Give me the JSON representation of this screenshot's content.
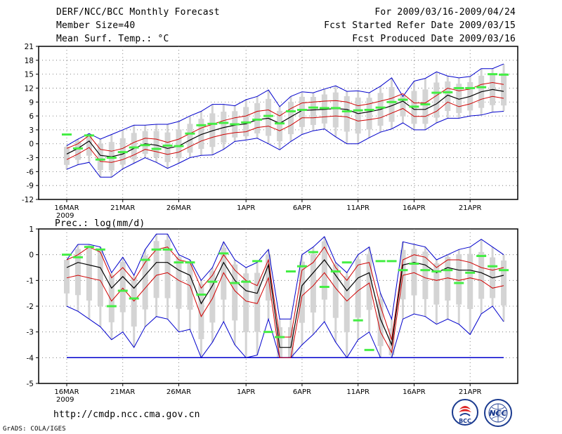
{
  "header": {
    "title": "DERF/NCC/BCC Monthly Forecast",
    "member_size": "Member Size=40",
    "variable": "Mean Surf. Temp.: °C",
    "fcst_for": "For 2009/03/16-2009/04/24",
    "fcst_started": "Fcst Started Refer Date 2009/03/15",
    "fcst_produced": "Fcst Produced Date 2009/03/16"
  },
  "footer": {
    "url": "http://cmdp.ncc.cma.gov.cn",
    "grads": "GrADS: COLA/IGES",
    "logo_bcc": "BCC",
    "logo_ncc": "NCC"
  },
  "colors": {
    "mean": "#000000",
    "spread": "#d00000",
    "envelope": "#0000cc",
    "box": "#d4d4d4",
    "obs": "#44ee44"
  },
  "chart_data": [
    {
      "type": "line",
      "title": "Mean Surf. Temp.: °C",
      "x_tick_labels": [
        "16MAR",
        "21MAR",
        "26MAR",
        "1APR",
        "6APR",
        "11APR",
        "16APR",
        "21APR"
      ],
      "x_tick_days": [
        1,
        6,
        11,
        17,
        22,
        27,
        32,
        37
      ],
      "year_label": "2009",
      "ylim": [
        -12,
        21
      ],
      "yticks": [
        -12,
        -9,
        -6,
        -3,
        0,
        3,
        6,
        9,
        12,
        15,
        18,
        21
      ],
      "days": 40,
      "series": [
        {
          "name": "ensemble mean",
          "values": [
            -2.2,
            -1,
            0.6,
            -2.5,
            -2.8,
            -2.2,
            -1,
            0,
            -0.3,
            -1,
            -0.5,
            0.8,
            2,
            2.8,
            3.5,
            4,
            4.3,
            5.2,
            5.5,
            4.4,
            5.8,
            7.2,
            7.3,
            7.4,
            7.6,
            7.4,
            6.5,
            6.9,
            7.4,
            8.2,
            9.2,
            7.4,
            7.4,
            8.6,
            10.5,
            9.6,
            10.2,
            11.2,
            11.7,
            11.3
          ]
        },
        {
          "name": "upper spread",
          "values": [
            -1,
            0,
            1.8,
            -1.2,
            -1.6,
            -1,
            0.3,
            1.2,
            1,
            0.3,
            1,
            2.2,
            3.4,
            4.2,
            5,
            5.6,
            6,
            7,
            7.3,
            6,
            7.6,
            8.8,
            9,
            9.2,
            9.3,
            9,
            8.2,
            8.6,
            9.2,
            9.8,
            10.8,
            8.8,
            8.8,
            10.4,
            12,
            11.4,
            11.8,
            12.8,
            13.2,
            12.8
          ]
        },
        {
          "name": "lower spread",
          "values": [
            -3.4,
            -2.2,
            -0.8,
            -3.8,
            -4,
            -3.4,
            -2.4,
            -1.2,
            -1.7,
            -2.3,
            -1.8,
            -0.6,
            0.6,
            1.4,
            2,
            2.4,
            2.6,
            3.5,
            3.8,
            2.8,
            4,
            5.6,
            5.6,
            5.8,
            6,
            5.8,
            4.9,
            5.2,
            5.6,
            6.6,
            7.6,
            5.9,
            5.9,
            7,
            9,
            8,
            8.6,
            9.6,
            10.2,
            9.8
          ]
        },
        {
          "name": "ensemble max",
          "values": [
            -0.4,
            1,
            2.2,
            1,
            2,
            3,
            4,
            4,
            4.2,
            4.2,
            4.8,
            6,
            7,
            8.5,
            8.5,
            8.2,
            9.5,
            10.2,
            11.6,
            8,
            10.2,
            11.2,
            11,
            11.8,
            12.5,
            11.3,
            11.4,
            11,
            12.4,
            14.2,
            10.2,
            13.5,
            14.1,
            15.5,
            14.6,
            14.2,
            14.5,
            16.2,
            16.2,
            17.2
          ]
        },
        {
          "name": "ensemble min",
          "values": [
            -5.5,
            -4.5,
            -4,
            -7.2,
            -7.2,
            -5.4,
            -4.2,
            -3,
            -4,
            -5.3,
            -4.2,
            -3,
            -2.5,
            -2.4,
            -1.2,
            0.5,
            0.8,
            1.2,
            0,
            -1.3,
            0.5,
            2,
            2.8,
            3.2,
            1.5,
            0,
            0,
            1.3,
            2.5,
            3.2,
            4.5,
            3,
            3,
            4.5,
            5.5,
            5.5,
            6,
            6.2,
            6.8,
            7
          ]
        },
        {
          "name": "observed (analog)",
          "values": [
            2,
            -1,
            1.8,
            -3.4,
            -3,
            -1.8,
            -0.8,
            -0.3,
            -1.1,
            -0.4,
            -0.5,
            2.2,
            4,
            4.3,
            4.5,
            4.2,
            4.6,
            5.2,
            6,
            4.4,
            7,
            7.3,
            7.8,
            7.7,
            7.7,
            7,
            7.2,
            7.3,
            7.8,
            9,
            9.5,
            8,
            8.5,
            11,
            11.1,
            12,
            12,
            12.2,
            15,
            14.9
          ]
        }
      ]
    },
    {
      "type": "line",
      "title": "Prec.: log(mm/d)",
      "x_tick_labels": [
        "16MAR",
        "21MAR",
        "26MAR",
        "1APR",
        "6APR",
        "11APR",
        "16APR",
        "21APR"
      ],
      "x_tick_days": [
        1,
        6,
        11,
        17,
        22,
        27,
        32,
        37
      ],
      "year_label": "2009",
      "ylim": [
        -5,
        1
      ],
      "yticks": [
        -5,
        -4,
        -3,
        -2,
        -1,
        0,
        1
      ],
      "days": 40,
      "series": [
        {
          "name": "ensemble mean",
          "values": [
            -0.5,
            -0.3,
            -0.4,
            -0.5,
            -1.3,
            -0.85,
            -1.3,
            -0.8,
            -0.3,
            -0.3,
            -0.6,
            -0.8,
            -1.9,
            -1.2,
            -0.3,
            -1,
            -1.4,
            -1.5,
            -0.4,
            -3.6,
            -3.6,
            -1.2,
            -0.7,
            -0.2,
            -0.8,
            -1.4,
            -0.9,
            -0.7,
            -2.5,
            -3.5,
            -0.4,
            -0.3,
            -0.4,
            -0.7,
            -0.5,
            -0.6,
            -0.6,
            -0.7,
            -0.9,
            -0.8
          ]
        },
        {
          "name": "upper spread",
          "values": [
            -0.2,
            0,
            0.3,
            0.1,
            -0.9,
            -0.5,
            -1,
            -0.3,
            0.2,
            0.3,
            -0.2,
            -0.3,
            -1.3,
            -0.8,
            0,
            -0.6,
            -1,
            -1.2,
            -0.2,
            -3.2,
            -3.2,
            -0.6,
            -0.3,
            0.3,
            -0.5,
            -1,
            -0.4,
            -0.3,
            -2,
            -3.3,
            -0.2,
            0,
            -0.1,
            -0.5,
            -0.2,
            -0.2,
            -0.3,
            -0.5,
            -0.6,
            -0.5
          ]
        },
        {
          "name": "lower spread",
          "values": [
            -0.9,
            -0.8,
            -0.9,
            -1,
            -1.8,
            -1.3,
            -1.8,
            -1.3,
            -0.8,
            -0.7,
            -1,
            -1.2,
            -2.4,
            -1.7,
            -0.7,
            -1.4,
            -1.8,
            -1.9,
            -0.9,
            -4,
            -4,
            -1.6,
            -1.2,
            -0.7,
            -1.3,
            -1.8,
            -1.4,
            -1.1,
            -3,
            -3.8,
            -0.8,
            -0.7,
            -0.9,
            -1,
            -0.9,
            -1,
            -0.9,
            -1,
            -1.3,
            -1.2
          ]
        },
        {
          "name": "ensemble max",
          "values": [
            -0.2,
            0.4,
            0.4,
            0.3,
            -0.7,
            -0.1,
            -0.8,
            0.2,
            0.8,
            0.8,
            0,
            -0.2,
            -1,
            -0.5,
            0.5,
            -0.2,
            -0.5,
            -0.3,
            0.2,
            -2.5,
            -2.5,
            0,
            0.3,
            0.7,
            -0.3,
            -0.7,
            0,
            0.3,
            -1.5,
            -2.5,
            0.5,
            0.4,
            0.3,
            -0.2,
            0,
            0.2,
            0.3,
            0.6,
            0.3,
            0
          ]
        },
        {
          "name": "ensemble min",
          "values": [
            -2,
            -2.2,
            -2.5,
            -2.8,
            -3.3,
            -3,
            -3.6,
            -2.8,
            -2.4,
            -2.5,
            -3,
            -2.9,
            -4,
            -3.4,
            -2.6,
            -3.5,
            -4,
            -3.9,
            -2.5,
            -4,
            -4,
            -3.5,
            -3.1,
            -2.6,
            -3.4,
            -4,
            -3.3,
            -3,
            -4,
            -4,
            -2.5,
            -2.3,
            -2.4,
            -2.7,
            -2.5,
            -2.7,
            -3.1,
            -2.3,
            -2,
            -2.6
          ]
        },
        {
          "name": "observed (analog)",
          "values": [
            0,
            -0.1,
            0.3,
            0.2,
            -2.0,
            -1.4,
            -1.7,
            -0.2,
            0.2,
            0.2,
            -0.3,
            -0.3,
            -1.55,
            -1.05,
            0.05,
            -1.1,
            -1.05,
            -0.25,
            -3.0,
            -3.2,
            -0.65,
            -0.45,
            0.1,
            -1.25,
            -0.65,
            -0.3,
            -2.55,
            -3.7,
            -0.25,
            -0.25,
            -0.6,
            -0.35,
            -0.6,
            -0.65,
            -0.6,
            -1.1,
            -0.7,
            -0.05,
            -0.45,
            -0.6
          ]
        },
        {
          "name": "lower bound",
          "values": [
            -4,
            -4,
            -4,
            -4,
            -4,
            -4,
            -4,
            -4,
            -4,
            -4,
            -4,
            -4,
            -4,
            -4,
            -4,
            -4,
            -4,
            -4,
            -4,
            -4,
            -4,
            -4,
            -4,
            -4,
            -4,
            -4,
            -4,
            -4,
            -4,
            -4,
            -4,
            -4,
            -4,
            -4,
            -4,
            -4,
            -4,
            -4,
            -4,
            -4
          ]
        }
      ]
    }
  ]
}
